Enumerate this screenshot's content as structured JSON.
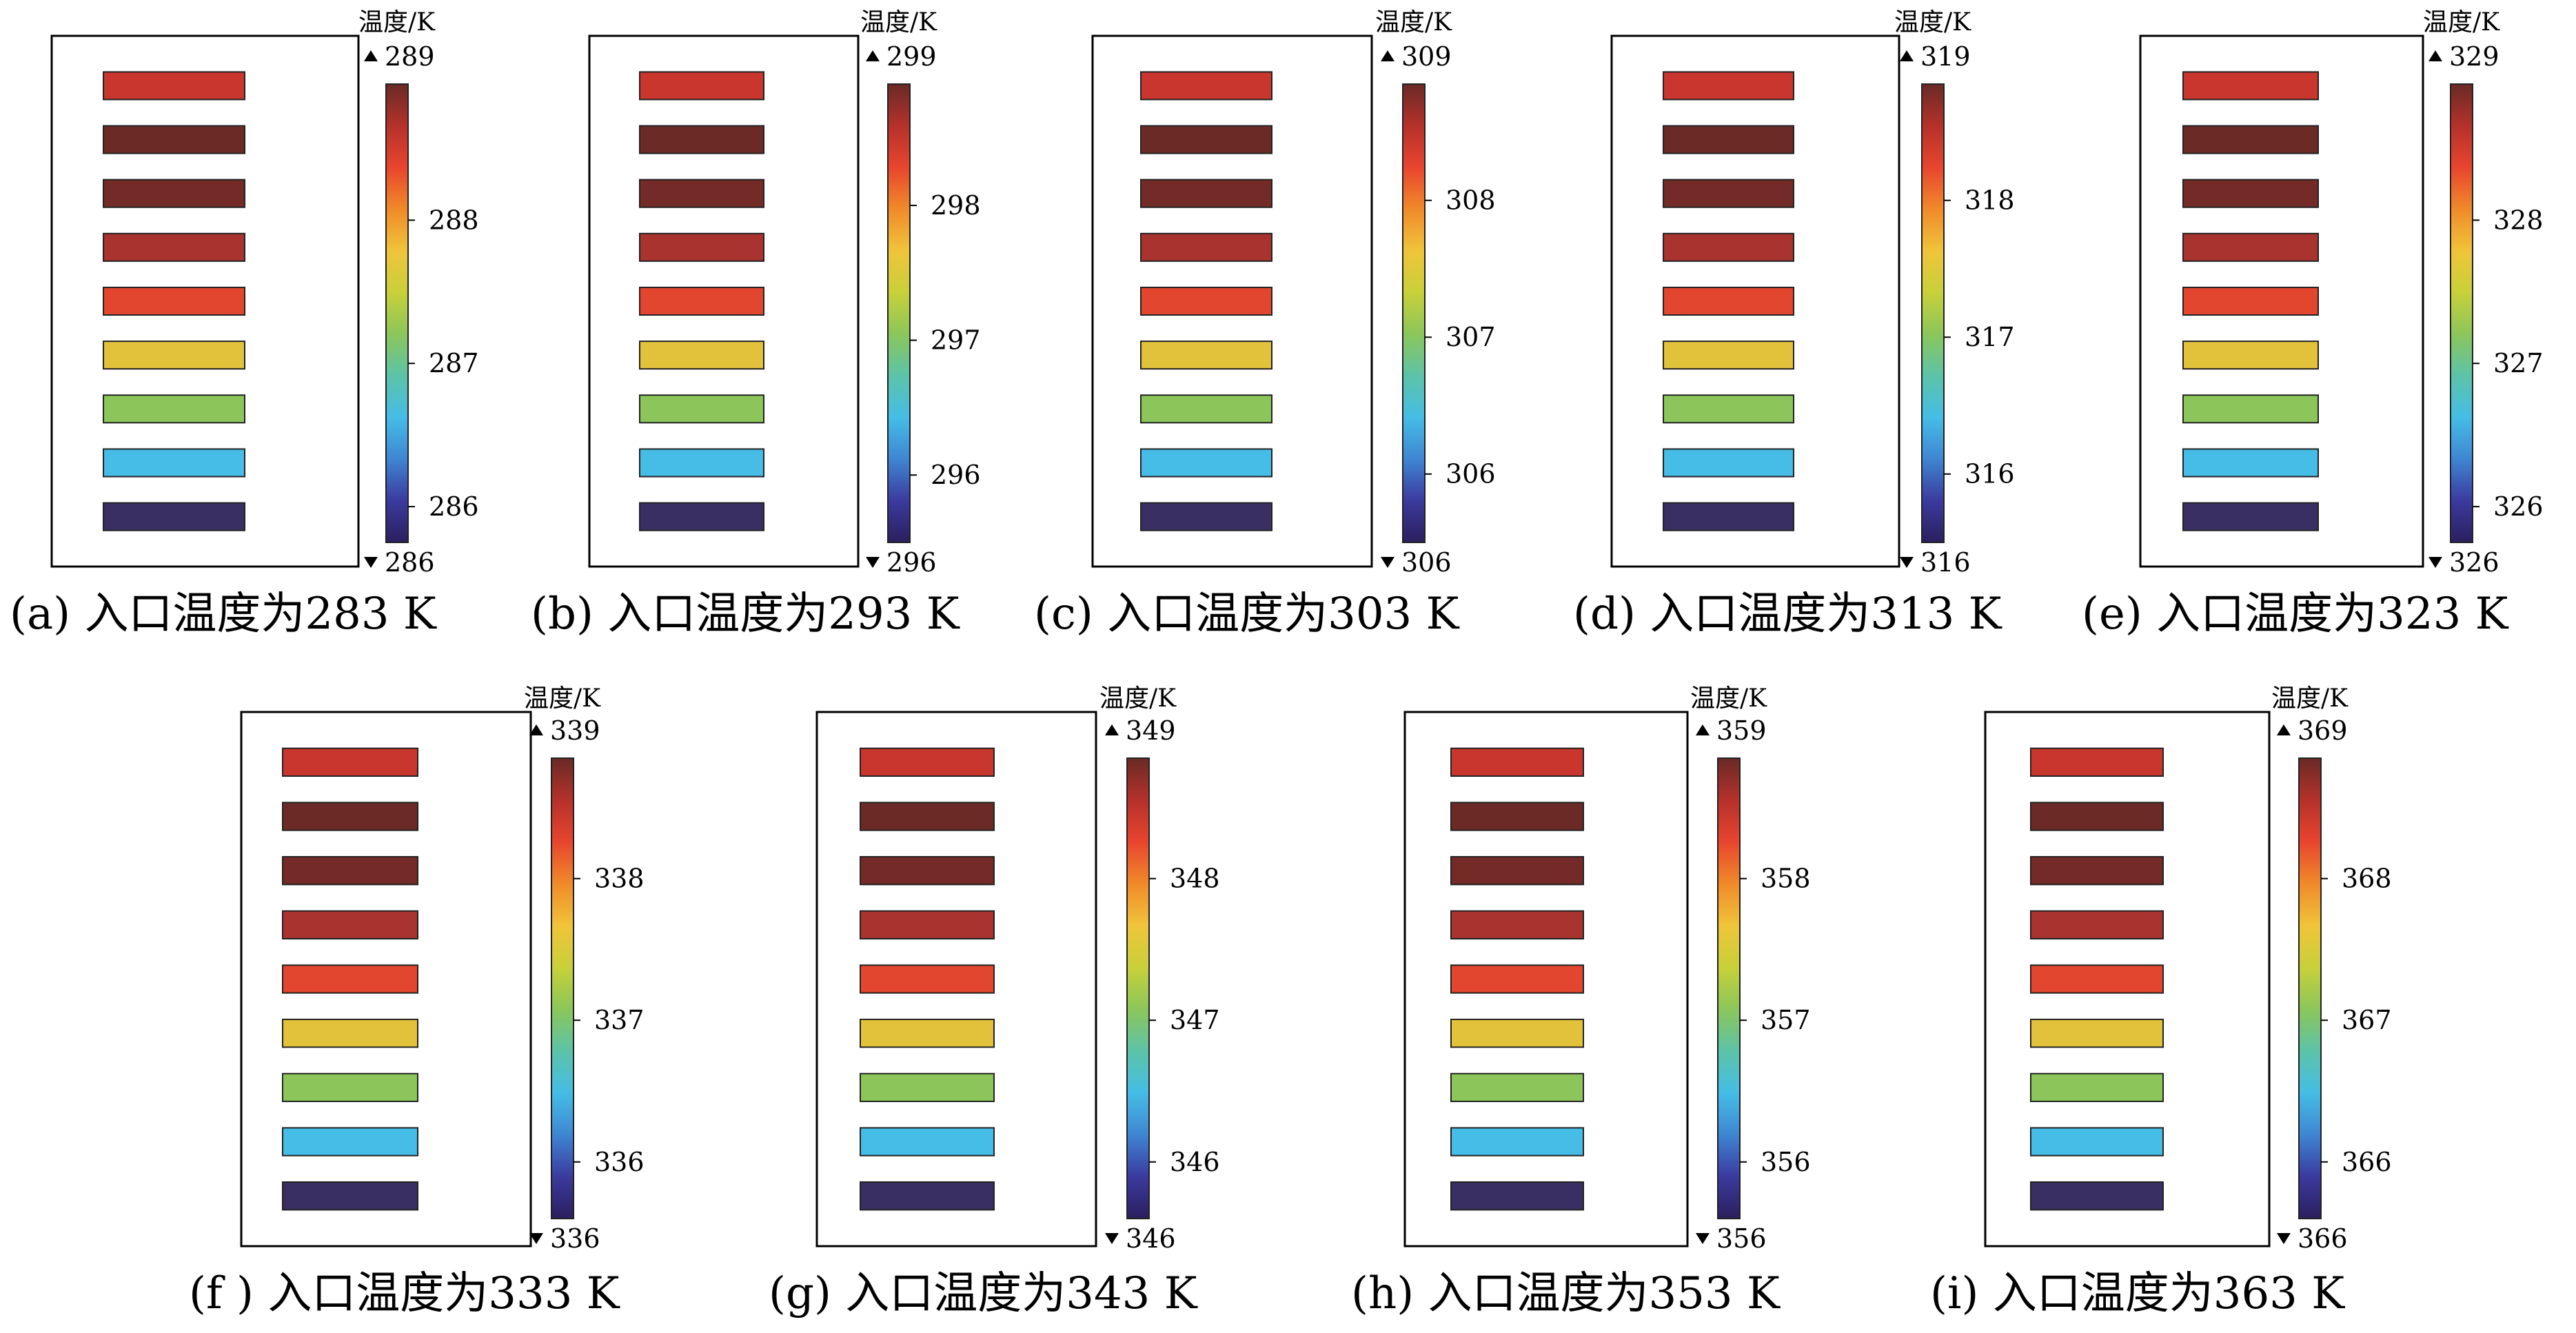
{
  "colormap": [
    "#2c1f5e",
    "#3b3a9e",
    "#3f86d2",
    "#45bde6",
    "#5cc3a8",
    "#8cc65a",
    "#c8d03a",
    "#f0c43a",
    "#f08a2a",
    "#e8452e",
    "#b5312b",
    "#6a2a26"
  ],
  "panels": [
    {
      "unit_label": "温度/K",
      "ticks": [
        "288",
        "287",
        "286"
      ],
      "tick_values": [
        288,
        287,
        286
      ],
      "max_label": "289",
      "min_label": "286",
      "range": [
        285.75,
        288.95
      ],
      "caption": "(a)  入口温度为283 K",
      "bar_colors": [
        "#c9362e",
        "#6b2a26",
        "#742b27",
        "#a8332f",
        "#e3462e",
        "#e2c23a",
        "#8cc65a",
        "#45bde6",
        "#3a2f62"
      ]
    },
    {
      "unit_label": "温度/K",
      "ticks": [
        "298",
        "297",
        "296"
      ],
      "tick_values": [
        298,
        297,
        296
      ],
      "max_label": "299",
      "min_label": "296",
      "range": [
        295.5,
        298.9
      ],
      "caption": "(b)  入口温度为293 K",
      "bar_colors": [
        "#c9362e",
        "#6b2a26",
        "#742b27",
        "#a8332f",
        "#e3462e",
        "#e2c23a",
        "#8cc65a",
        "#45bde6",
        "#3a2f62"
      ]
    },
    {
      "unit_label": "温度/K",
      "ticks": [
        "308",
        "307",
        "306"
      ],
      "tick_values": [
        308,
        307,
        306
      ],
      "max_label": "309",
      "min_label": "306",
      "range": [
        305.5,
        308.85
      ],
      "caption": "(c)  入口温度为303 K",
      "bar_colors": [
        "#c9362e",
        "#6b2a26",
        "#742b27",
        "#a8332f",
        "#e3462e",
        "#e2c23a",
        "#8cc65a",
        "#45bde6",
        "#3a2f62"
      ]
    },
    {
      "unit_label": "温度/K",
      "ticks": [
        "318",
        "317",
        "316"
      ],
      "tick_values": [
        318,
        317,
        316
      ],
      "max_label": "319",
      "min_label": "316",
      "range": [
        315.5,
        318.85
      ],
      "caption": "(d)  入口温度为313 K",
      "bar_colors": [
        "#c9362e",
        "#6b2a26",
        "#742b27",
        "#a8332f",
        "#e3462e",
        "#e2c23a",
        "#8cc65a",
        "#45bde6",
        "#3a2f62"
      ]
    },
    {
      "unit_label": "温度/K",
      "ticks": [
        "328",
        "327",
        "326"
      ],
      "tick_values": [
        328,
        327,
        326
      ],
      "max_label": "329",
      "min_label": "326",
      "range": [
        325.75,
        328.95
      ],
      "caption": "(e)  入口温度为323 K",
      "bar_colors": [
        "#c9362e",
        "#6b2a26",
        "#742b27",
        "#a8332f",
        "#e3462e",
        "#e2c23a",
        "#8cc65a",
        "#45bde6",
        "#3a2f62"
      ]
    },
    {
      "unit_label": "温度/K",
      "ticks": [
        "338",
        "337",
        "336"
      ],
      "tick_values": [
        338,
        337,
        336
      ],
      "max_label": "339",
      "min_label": "336",
      "range": [
        335.6,
        338.85
      ],
      "caption": "(f )  入口温度为333 K",
      "bar_colors": [
        "#c9362e",
        "#6b2a26",
        "#742b27",
        "#a8332f",
        "#e3462e",
        "#e2c23a",
        "#8cc65a",
        "#45bde6",
        "#3a2f62"
      ]
    },
    {
      "unit_label": "温度/K",
      "ticks": [
        "348",
        "347",
        "346"
      ],
      "tick_values": [
        348,
        347,
        346
      ],
      "max_label": "349",
      "min_label": "346",
      "range": [
        345.6,
        348.85
      ],
      "caption": "(g)  入口温度为343 K",
      "bar_colors": [
        "#c9362e",
        "#6b2a26",
        "#742b27",
        "#a8332f",
        "#e3462e",
        "#e2c23a",
        "#8cc65a",
        "#45bde6",
        "#3a2f62"
      ]
    },
    {
      "unit_label": "温度/K",
      "ticks": [
        "358",
        "357",
        "356"
      ],
      "tick_values": [
        358,
        357,
        356
      ],
      "max_label": "359",
      "min_label": "356",
      "range": [
        355.6,
        358.85
      ],
      "caption": "(h)  入口温度为353 K",
      "bar_colors": [
        "#c9362e",
        "#6b2a26",
        "#742b27",
        "#a8332f",
        "#e3462e",
        "#e2c23a",
        "#8cc65a",
        "#45bde6",
        "#3a2f62"
      ]
    },
    {
      "unit_label": "温度/K",
      "ticks": [
        "368",
        "367",
        "366"
      ],
      "tick_values": [
        368,
        367,
        366
      ],
      "max_label": "369",
      "min_label": "366",
      "range": [
        365.6,
        368.85
      ],
      "caption": "(i)  入口温度为363 K",
      "bar_colors": [
        "#c9362e",
        "#6b2a26",
        "#742b27",
        "#a8332f",
        "#e3462e",
        "#e2c23a",
        "#8cc65a",
        "#45bde6",
        "#3a2f62"
      ]
    }
  ]
}
